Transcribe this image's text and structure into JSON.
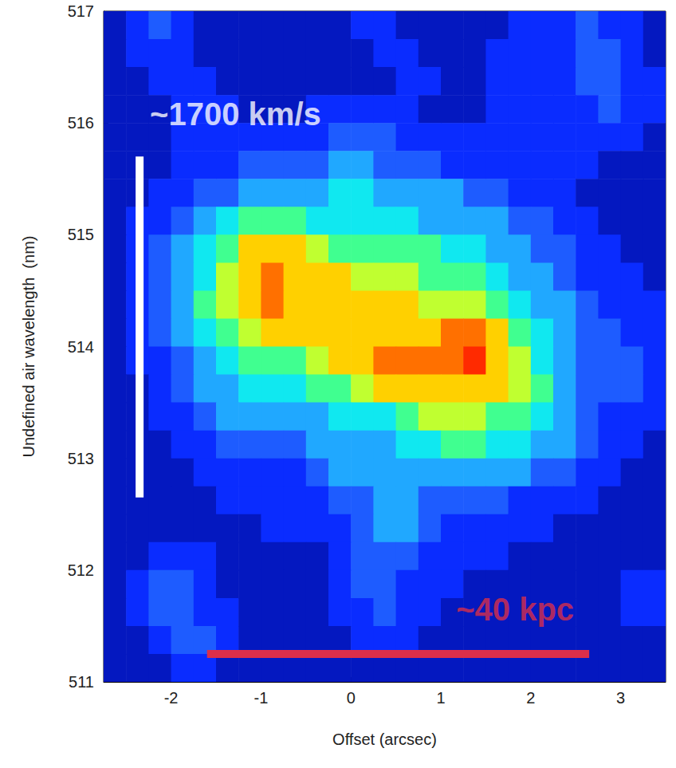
{
  "chart_data": {
    "type": "heatmap",
    "x_label": "Offset (arcsec)",
    "y_label": "Undefined air wavelength  (nm)",
    "xlim": [
      -2.75,
      3.5
    ],
    "xticks": [
      -2,
      -1,
      0,
      1,
      2,
      3
    ],
    "ylim": [
      511,
      517
    ],
    "yticks": [
      511,
      512,
      513,
      514,
      515,
      516,
      517
    ],
    "grid": false,
    "x": [
      -2.625,
      -2.375,
      -2.125,
      -1.875,
      -1.625,
      -1.375,
      -1.125,
      -0.875,
      -0.625,
      -0.375,
      -0.125,
      0.125,
      0.375,
      0.625,
      0.875,
      1.125,
      1.375,
      1.625,
      1.875,
      2.125,
      2.375,
      2.625,
      2.875,
      3.125,
      3.375
    ],
    "y": [
      516.875,
      516.625,
      516.375,
      516.125,
      515.875,
      515.625,
      515.375,
      515.125,
      514.875,
      514.625,
      514.375,
      514.125,
      513.875,
      513.625,
      513.375,
      513.125,
      512.875,
      512.625,
      512.375,
      512.125,
      511.875,
      511.625,
      511.375,
      511.125
    ],
    "values": [
      [
        1,
        2,
        3,
        2,
        1,
        1,
        1,
        1,
        1,
        1,
        1,
        2,
        2,
        1,
        1,
        1,
        1,
        1,
        2,
        2,
        2,
        3,
        2,
        2,
        1
      ],
      [
        1,
        2,
        2,
        2,
        1,
        1,
        1,
        1,
        1,
        1,
        1,
        1,
        2,
        2,
        1,
        1,
        1,
        2,
        2,
        2,
        2,
        3,
        3,
        2,
        1
      ],
      [
        1,
        1,
        2,
        2,
        2,
        1,
        1,
        1,
        1,
        1,
        1,
        1,
        1,
        2,
        2,
        1,
        1,
        2,
        2,
        2,
        2,
        3,
        3,
        2,
        2
      ],
      [
        1,
        1,
        1,
        2,
        2,
        2,
        1,
        1,
        1,
        2,
        2,
        2,
        2,
        2,
        1,
        1,
        1,
        2,
        2,
        2,
        2,
        2,
        3,
        2,
        2
      ],
      [
        1,
        1,
        1,
        2,
        2,
        2,
        2,
        2,
        2,
        2,
        3,
        3,
        3,
        2,
        2,
        2,
        2,
        2,
        2,
        2,
        2,
        2,
        2,
        2,
        1
      ],
      [
        1,
        1,
        1,
        2,
        2,
        2,
        3,
        3,
        3,
        3,
        4,
        4,
        3,
        3,
        3,
        2,
        2,
        2,
        2,
        2,
        2,
        2,
        1,
        1,
        1
      ],
      [
        1,
        1,
        2,
        2,
        3,
        3,
        4,
        4,
        4,
        4,
        5,
        5,
        4,
        4,
        4,
        4,
        3,
        3,
        2,
        2,
        2,
        1,
        1,
        1,
        1
      ],
      [
        1,
        2,
        2,
        3,
        4,
        5,
        6,
        6,
        6,
        5,
        5,
        5,
        5,
        5,
        4,
        4,
        4,
        4,
        3,
        3,
        2,
        2,
        1,
        1,
        1
      ],
      [
        1,
        2,
        3,
        4,
        5,
        6,
        8,
        8,
        8,
        7,
        6,
        6,
        6,
        6,
        6,
        5,
        5,
        4,
        4,
        3,
        3,
        2,
        2,
        1,
        1
      ],
      [
        1,
        2,
        3,
        4,
        5,
        7,
        8,
        9,
        8,
        8,
        8,
        7,
        7,
        7,
        6,
        6,
        6,
        5,
        4,
        4,
        3,
        2,
        2,
        2,
        1
      ],
      [
        1,
        2,
        3,
        4,
        6,
        7,
        8,
        9,
        8,
        8,
        8,
        8,
        8,
        8,
        7,
        7,
        7,
        6,
        5,
        4,
        4,
        3,
        2,
        2,
        2
      ],
      [
        1,
        2,
        3,
        4,
        5,
        6,
        7,
        8,
        8,
        8,
        8,
        8,
        8,
        8,
        8,
        9,
        9,
        8,
        6,
        5,
        4,
        3,
        3,
        2,
        2
      ],
      [
        1,
        2,
        2,
        3,
        4,
        5,
        6,
        6,
        6,
        7,
        8,
        8,
        9,
        9,
        9,
        9,
        10,
        8,
        7,
        5,
        4,
        3,
        3,
        3,
        2
      ],
      [
        1,
        1,
        2,
        3,
        4,
        4,
        5,
        5,
        5,
        6,
        6,
        7,
        8,
        8,
        8,
        8,
        8,
        8,
        7,
        6,
        4,
        3,
        3,
        3,
        2
      ],
      [
        1,
        1,
        2,
        2,
        3,
        4,
        4,
        4,
        4,
        4,
        5,
        5,
        5,
        6,
        7,
        7,
        7,
        6,
        6,
        5,
        4,
        3,
        2,
        2,
        2
      ],
      [
        1,
        1,
        1,
        2,
        2,
        3,
        3,
        3,
        3,
        4,
        4,
        4,
        4,
        5,
        5,
        6,
        6,
        5,
        5,
        4,
        4,
        3,
        2,
        2,
        1
      ],
      [
        1,
        1,
        1,
        1,
        2,
        2,
        2,
        2,
        2,
        3,
        4,
        4,
        4,
        4,
        4,
        4,
        4,
        4,
        4,
        3,
        3,
        2,
        2,
        1,
        1
      ],
      [
        1,
        1,
        1,
        1,
        1,
        2,
        2,
        2,
        2,
        2,
        3,
        3,
        4,
        4,
        3,
        3,
        3,
        3,
        2,
        2,
        2,
        2,
        1,
        1,
        1
      ],
      [
        1,
        1,
        1,
        1,
        1,
        1,
        1,
        2,
        2,
        2,
        2,
        3,
        4,
        4,
        3,
        2,
        2,
        2,
        2,
        2,
        1,
        1,
        1,
        1,
        1
      ],
      [
        1,
        1,
        2,
        2,
        2,
        1,
        1,
        1,
        1,
        1,
        2,
        3,
        3,
        3,
        2,
        2,
        2,
        2,
        1,
        1,
        1,
        1,
        1,
        1,
        1
      ],
      [
        1,
        2,
        3,
        3,
        2,
        1,
        1,
        1,
        1,
        1,
        2,
        3,
        3,
        2,
        2,
        2,
        1,
        1,
        1,
        1,
        1,
        1,
        1,
        2,
        2
      ],
      [
        1,
        2,
        3,
        3,
        2,
        2,
        1,
        1,
        1,
        1,
        2,
        2,
        3,
        2,
        2,
        1,
        1,
        1,
        1,
        1,
        1,
        1,
        1,
        2,
        2
      ],
      [
        1,
        1,
        2,
        3,
        3,
        2,
        1,
        1,
        1,
        1,
        1,
        2,
        2,
        2,
        1,
        1,
        1,
        1,
        1,
        1,
        1,
        1,
        1,
        1,
        1
      ],
      [
        1,
        1,
        1,
        2,
        2,
        1,
        1,
        1,
        1,
        1,
        1,
        1,
        1,
        1,
        1,
        1,
        1,
        1,
        1,
        1,
        1,
        1,
        1,
        1,
        1
      ]
    ],
    "annotations": [
      {
        "text": "~1700 km/s",
        "x": [
          -2.35,
          -2.35
        ],
        "y": [
          515.7,
          512.65
        ],
        "color": "#ffffff"
      },
      {
        "text": "~40 kpc",
        "x": [
          -1.6,
          2.65
        ],
        "y": [
          511.25,
          511.25
        ],
        "color": "#dc2f4a"
      }
    ]
  }
}
